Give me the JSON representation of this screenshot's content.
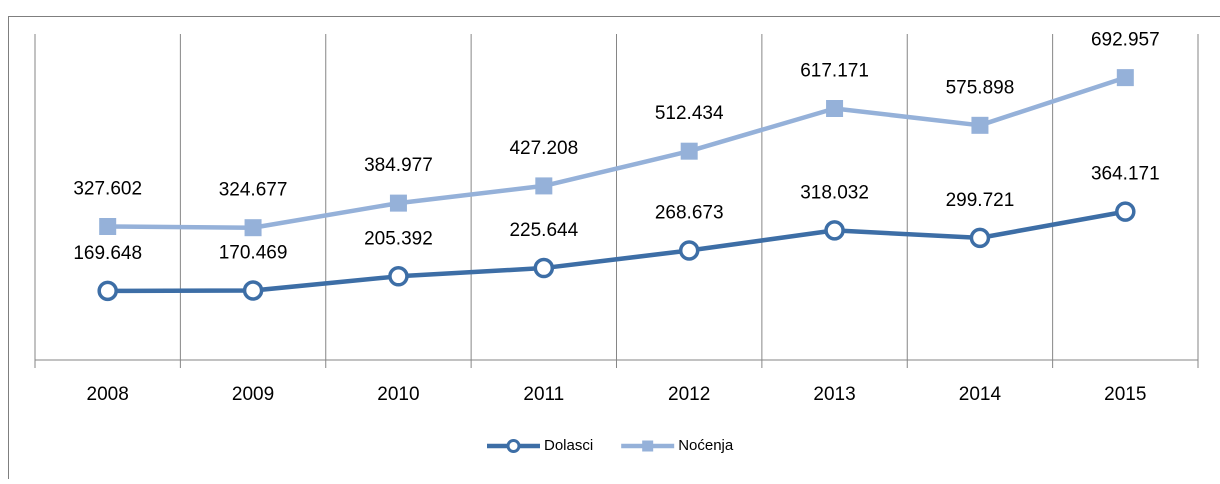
{
  "chart_data": {
    "type": "line",
    "categories": [
      "2008",
      "2009",
      "2010",
      "2011",
      "2012",
      "2013",
      "2014",
      "2015"
    ],
    "series": [
      {
        "name": "Dolasci",
        "color": "#3d6ea6",
        "marker": "circle",
        "values": [
          169648,
          170469,
          205392,
          225644,
          268673,
          318032,
          299721,
          364171
        ],
        "value_labels": [
          "169.648",
          "170.469",
          "205.392",
          "225.644",
          "268.673",
          "318.032",
          "299.721",
          "364.171"
        ]
      },
      {
        "name": "Noćenja",
        "color": "#95b1d9",
        "marker": "square",
        "values": [
          327602,
          324677,
          384977,
          427208,
          512434,
          617171,
          575898,
          692957
        ],
        "value_labels": [
          "327.602",
          "324.677",
          "384.977",
          "427.208",
          "512.434",
          "617.171",
          "575.898",
          "692.957"
        ]
      }
    ],
    "ylim": [
      0,
      800000
    ],
    "legend": "bottom"
  }
}
